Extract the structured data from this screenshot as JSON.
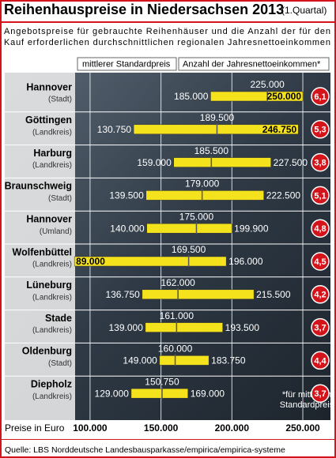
{
  "chart_data": {
    "type": "range_bar",
    "title": "Reihenhauspreise in Niedersachsen 2013",
    "title_note": "(1.Quartal)",
    "subtitle": [
      "Angebotspreise für gebrauchte Reihenhäuser und die Anzahl der für den",
      "Kauf erforderlichen durchschnittlichen regionalen Jahresnettoeinkommen"
    ],
    "categories": [
      "Hannover",
      "Göttingen",
      "Harburg",
      "Braunschweig",
      "Hannover",
      "Wolfenbüttel",
      "Lüneburg",
      "Stade",
      "Oldenburg",
      "Diepholz"
    ],
    "regions": [
      "(Stadt)",
      "(Landkreis)",
      "(Landkreis)",
      "(Stadt)",
      "(Umland)",
      "(Landkreis)",
      "(Landkreis)",
      "(Landkreis)",
      "(Stadt)",
      "(Landkreis)"
    ],
    "low": {
      "values": [
        185000,
        130750,
        159000,
        139500,
        140000,
        89000,
        136750,
        139000,
        149000,
        129000
      ],
      "value_labels": [
        "185.000",
        "130.750",
        "159.000",
        "139.500",
        "140.000",
        "89.000",
        "136.750",
        "139.000",
        "149.000",
        "129.000"
      ]
    },
    "mid": {
      "name": "mittlerer Standardpreis",
      "values": [
        225000,
        189500,
        185500,
        179000,
        175000,
        169500,
        162000,
        161000,
        160000,
        150750
      ],
      "value_labels": [
        "225.000",
        "189.500",
        "185.500",
        "179.000",
        "175.000",
        "169.500",
        "162.000",
        "161.000",
        "160.000",
        "150.750"
      ]
    },
    "high": {
      "values": [
        250000,
        246750,
        227500,
        222500,
        199900,
        196000,
        215500,
        193500,
        183750,
        169000
      ],
      "value_labels": [
        "250.000",
        "246.750",
        "227.500",
        "222.500",
        "199.900",
        "196.000",
        "215.500",
        "193.500",
        "183.750",
        "169.000"
      ]
    },
    "ratio": {
      "name": "Anzahl der Jahresnettoeinkommen*",
      "values": [
        6.1,
        5.3,
        3.8,
        5.1,
        4.8,
        4.5,
        4.2,
        3.7,
        4.4,
        3.7
      ],
      "value_labels": [
        "6,1",
        "5,3",
        "3,8",
        "5,1",
        "4,8",
        "4,5",
        "4,2",
        "3,7",
        "4,4",
        "3,7"
      ],
      "color": "#d3151b"
    },
    "color": "#f4e21c",
    "xlabel": "Preise in Euro",
    "xlim": [
      85000,
      255000
    ],
    "xticks": [
      {
        "value": 100000,
        "label": "100.000"
      },
      {
        "value": 150000,
        "label": "150.000"
      },
      {
        "value": 200000,
        "label": "200.000"
      },
      {
        "value": 250000,
        "label": "250.000"
      }
    ],
    "grid": true,
    "footnote": [
      "*für mittleren",
      "Standardpreis"
    ],
    "source": "Quelle: LBS Norddeutsche Landesbausparkasse/empirica/empirica-systeme"
  }
}
